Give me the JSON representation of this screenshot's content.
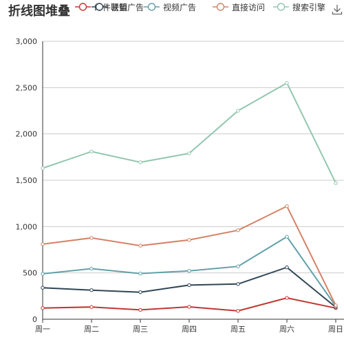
{
  "toolbar": {
    "download_icon": "download-icon"
  },
  "chart_data": {
    "type": "line",
    "title": "折线图堆叠",
    "categories": [
      "周一",
      "周二",
      "周三",
      "周四",
      "周五",
      "周六",
      "周日"
    ],
    "ylim": [
      0,
      3000
    ],
    "yticks": [
      0,
      500,
      1000,
      1500,
      2000,
      2500,
      3000
    ],
    "ytick_labels": [
      "0",
      "500",
      "1,000",
      "1,500",
      "2,000",
      "2,500",
      "3,000"
    ],
    "grid": true,
    "legend_position": "top",
    "series": [
      {
        "name": "邮件营销",
        "color": "#c23531",
        "values": [
          120,
          132,
          101,
          134,
          90,
          230,
          120
        ]
      },
      {
        "name": "联盟广告",
        "color": "#2f4554",
        "values": [
          340,
          314,
          292,
          368,
          380,
          560,
          130
        ]
      },
      {
        "name": "视频广告",
        "color": "#61a0a8",
        "values": [
          490,
          546,
          493,
          522,
          570,
          890,
          140
        ]
      },
      {
        "name": "直接访问",
        "color": "#d48265",
        "values": [
          810,
          878,
          794,
          856,
          960,
          1220,
          150
        ]
      },
      {
        "name": "搜索引擎",
        "color": "#91c7ae",
        "values": [
          1630,
          1810,
          1694,
          1790,
          2250,
          2550,
          1470
        ]
      }
    ]
  }
}
